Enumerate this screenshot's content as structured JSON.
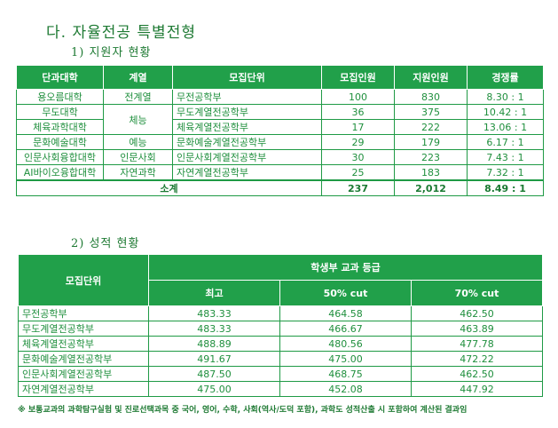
{
  "section_title": "다. 자율전공 특별전형",
  "sub1_title": "1) 지원자 현황",
  "sub2_title": "2) 성적 현황",
  "table1": {
    "headers": [
      "단과대학",
      "계열",
      "모집단위",
      "모집인원",
      "지원인원",
      "경쟁률"
    ],
    "rows": [
      {
        "college": "용오름대학",
        "field": "전계열",
        "unit": "무전공학부",
        "quota": "100",
        "applicants": "830",
        "ratio": "8.30 : 1"
      },
      {
        "college": "무도대학",
        "field": "체능",
        "unit": "무도계열전공학부",
        "quota": "36",
        "applicants": "375",
        "ratio": "10.42 : 1"
      },
      {
        "college": "체육과학대학",
        "field": "",
        "unit": "체육계열전공학부",
        "quota": "17",
        "applicants": "222",
        "ratio": "13.06 : 1"
      },
      {
        "college": "문화예술대학",
        "field": "예능",
        "unit": "문화예술계열전공학부",
        "quota": "29",
        "applicants": "179",
        "ratio": "6.17 : 1"
      },
      {
        "college": "인문사회융합대학",
        "field": "인문사회",
        "unit": "인문사회계열전공학부",
        "quota": "30",
        "applicants": "223",
        "ratio": "7.43 : 1"
      },
      {
        "college": "AI바이오융합대학",
        "field": "자연과학",
        "unit": "자연계열전공학부",
        "quota": "25",
        "applicants": "183",
        "ratio": "7.32 : 1"
      }
    ],
    "total": {
      "label": "소계",
      "quota": "237",
      "applicants": "2,012",
      "ratio": "8.49 : 1"
    }
  },
  "table2": {
    "header_unit": "모집단위",
    "header_group": "학생부 교과 등급",
    "header_cols": [
      "최고",
      "50% cut",
      "70% cut"
    ],
    "rows": [
      {
        "unit": "무전공학부",
        "best": "483.33",
        "cut50": "464.58",
        "cut70": "462.50"
      },
      {
        "unit": "무도계열전공학부",
        "best": "483.33",
        "cut50": "466.67",
        "cut70": "463.89"
      },
      {
        "unit": "체육계열전공학부",
        "best": "488.89",
        "cut50": "480.56",
        "cut70": "477.78"
      },
      {
        "unit": "문화예술계열전공학부",
        "best": "491.67",
        "cut50": "475.00",
        "cut70": "472.22"
      },
      {
        "unit": "인문사회계열전공학부",
        "best": "487.50",
        "cut50": "468.75",
        "cut70": "462.50"
      },
      {
        "unit": "자연계열전공학부",
        "best": "475.00",
        "cut50": "452.08",
        "cut70": "447.92"
      }
    ]
  },
  "footnote": "※ 보통교과의 과학탐구실험 및 진로선택과목 중 국어, 영어, 수학, 사회(역사/도덕 포함), 과학도 성적산출 시 포함하여 계산된 결과임"
}
